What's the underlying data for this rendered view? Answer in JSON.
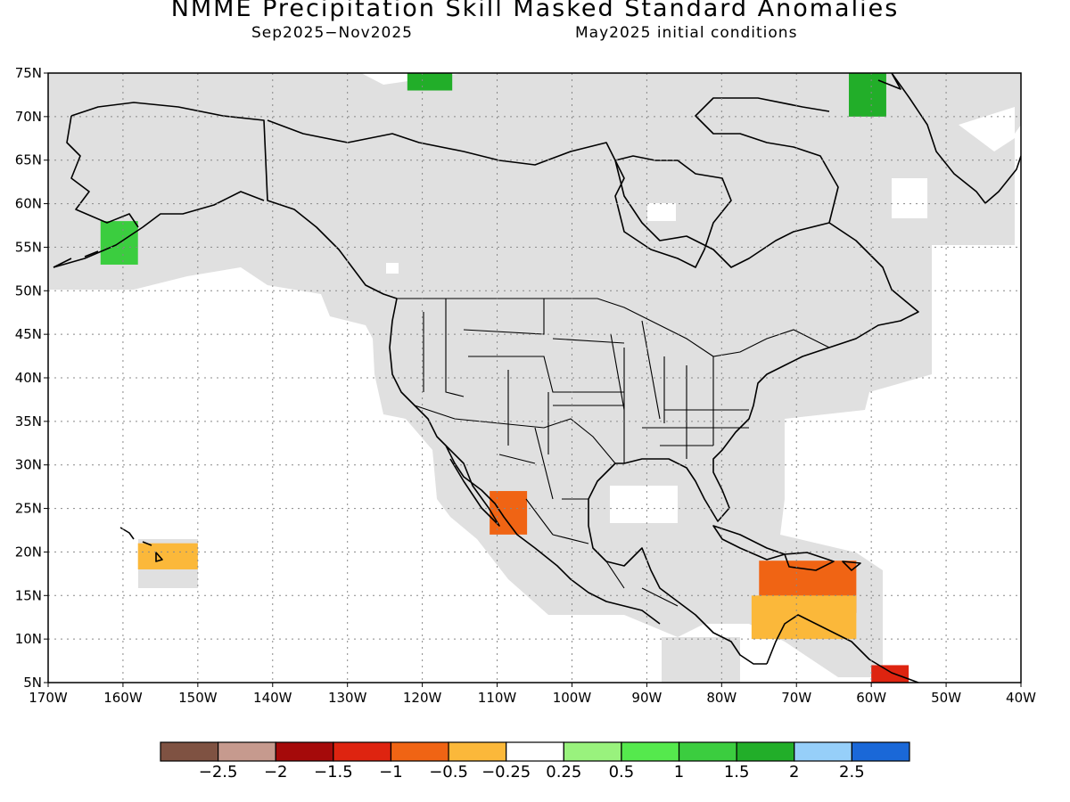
{
  "title": "NMME Precipitation Skill Masked Standard Anomalies",
  "subtitle_left": "Sep2025−Nov2025",
  "subtitle_right": "May2025 initial conditions",
  "map": {
    "lon_range": [
      -170,
      -40
    ],
    "lat_range": [
      5,
      75
    ],
    "x_ticks": [
      "170W",
      "160W",
      "150W",
      "140W",
      "130W",
      "120W",
      "110W",
      "100W",
      "90W",
      "80W",
      "70W",
      "60W",
      "50W",
      "40W"
    ],
    "y_ticks": [
      "75N",
      "70N",
      "65N",
      "60N",
      "55N",
      "50N",
      "45N",
      "40N",
      "35N",
      "30N",
      "25N",
      "20N",
      "15N",
      "10N",
      "5N"
    ],
    "grid": "dotted",
    "mask_color": "#e0e0e0",
    "coastline_color": "#000000",
    "anomaly_regions": [
      {
        "name": "western-mexico",
        "lon": [
          -111,
          -106
        ],
        "lat": [
          22,
          27
        ],
        "value": -1.0
      },
      {
        "name": "caribbean",
        "lon": [
          -75,
          -62
        ],
        "lat": [
          13,
          19
        ],
        "value": -1.0
      },
      {
        "name": "central-america-east",
        "lon": [
          -76,
          -62
        ],
        "lat": [
          10,
          15
        ],
        "value": -0.5
      },
      {
        "name": "venezuela-guyana",
        "lon": [
          -60,
          -55
        ],
        "lat": [
          5,
          7
        ],
        "value": -1.5
      },
      {
        "name": "alaska-sw",
        "lon": [
          -163,
          -158
        ],
        "lat": [
          53,
          58
        ],
        "value": 1.0
      },
      {
        "name": "arctic-canada",
        "lon": [
          -122,
          -116
        ],
        "lat": [
          73,
          75
        ],
        "value": 1.5
      },
      {
        "name": "greenland-south",
        "lon": [
          -63,
          -58
        ],
        "lat": [
          70,
          75
        ],
        "value": 1.5
      },
      {
        "name": "hawaii",
        "lon": [
          -158,
          -150
        ],
        "lat": [
          18,
          21
        ],
        "value": -0.5
      }
    ]
  },
  "colorbar": {
    "colors": [
      "#7f5242",
      "#c69a8e",
      "#a50a0a",
      "#de2410",
      "#f06414",
      "#fbb83a",
      "#ffffff",
      "#99f27d",
      "#55e94d",
      "#3bcd3f",
      "#22ae29",
      "#96cff9",
      "#1a68d8"
    ],
    "labels": [
      "−2.5",
      "−2",
      "−1.5",
      "−1",
      "−0.5",
      "−0.25",
      "0.25",
      "0.5",
      "1",
      "1.5",
      "2",
      "2.5"
    ]
  }
}
